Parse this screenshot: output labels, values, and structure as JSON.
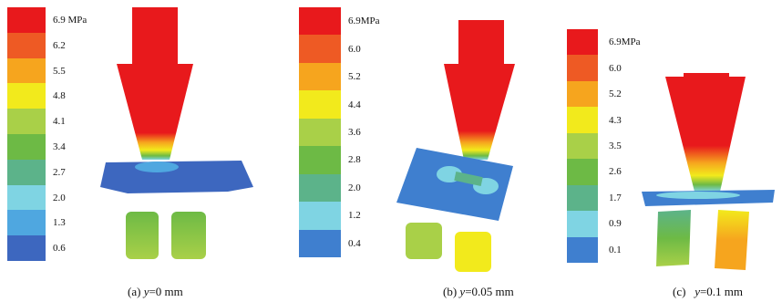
{
  "panels": [
    {
      "caption_prefix": "(a) ",
      "caption_var": "y",
      "caption_suffix": "=0 mm",
      "colorbar": {
        "labels": [
          "6.9 MPa",
          "6.2",
          "5.5",
          "4.8",
          "4.1",
          "3.4",
          "2.7",
          "2.0",
          "1.3",
          "0.6"
        ],
        "colors": [
          "#e8191c",
          "#ee5a24",
          "#f6a51e",
          "#f2ea1c",
          "#a9d048",
          "#6dba45",
          "#5cb38a",
          "#7fd4e3",
          "#4fa7e0",
          "#3d67bf"
        ]
      }
    },
    {
      "caption_prefix": "(b) ",
      "caption_var": "y",
      "caption_suffix": "=0.05 mm",
      "colorbar": {
        "labels": [
          "6.9MPa",
          "6.0",
          "5.2",
          "4.4",
          "3.6",
          "2.8",
          "2.0",
          "1.2",
          "0.4"
        ],
        "colors": [
          "#e8191c",
          "#ee5a24",
          "#f6a51e",
          "#f2ea1c",
          "#a9d048",
          "#6dba45",
          "#5cb38a",
          "#7fd4e3",
          "#3f7fcf"
        ]
      }
    },
    {
      "caption_prefix": "(c)   ",
      "caption_var": "y",
      "caption_suffix": "=0.1 mm",
      "colorbar": {
        "labels": [
          "6.9MPa",
          "6.0",
          "5.2",
          "4.3",
          "3.5",
          "2.6",
          "1.7",
          "0.9",
          "0.1"
        ],
        "colors": [
          "#e8191c",
          "#ee5a24",
          "#f6a51e",
          "#f2ea1c",
          "#a9d048",
          "#6dba45",
          "#5cb38a",
          "#7fd4e3",
          "#3f7fcf"
        ]
      }
    }
  ]
}
